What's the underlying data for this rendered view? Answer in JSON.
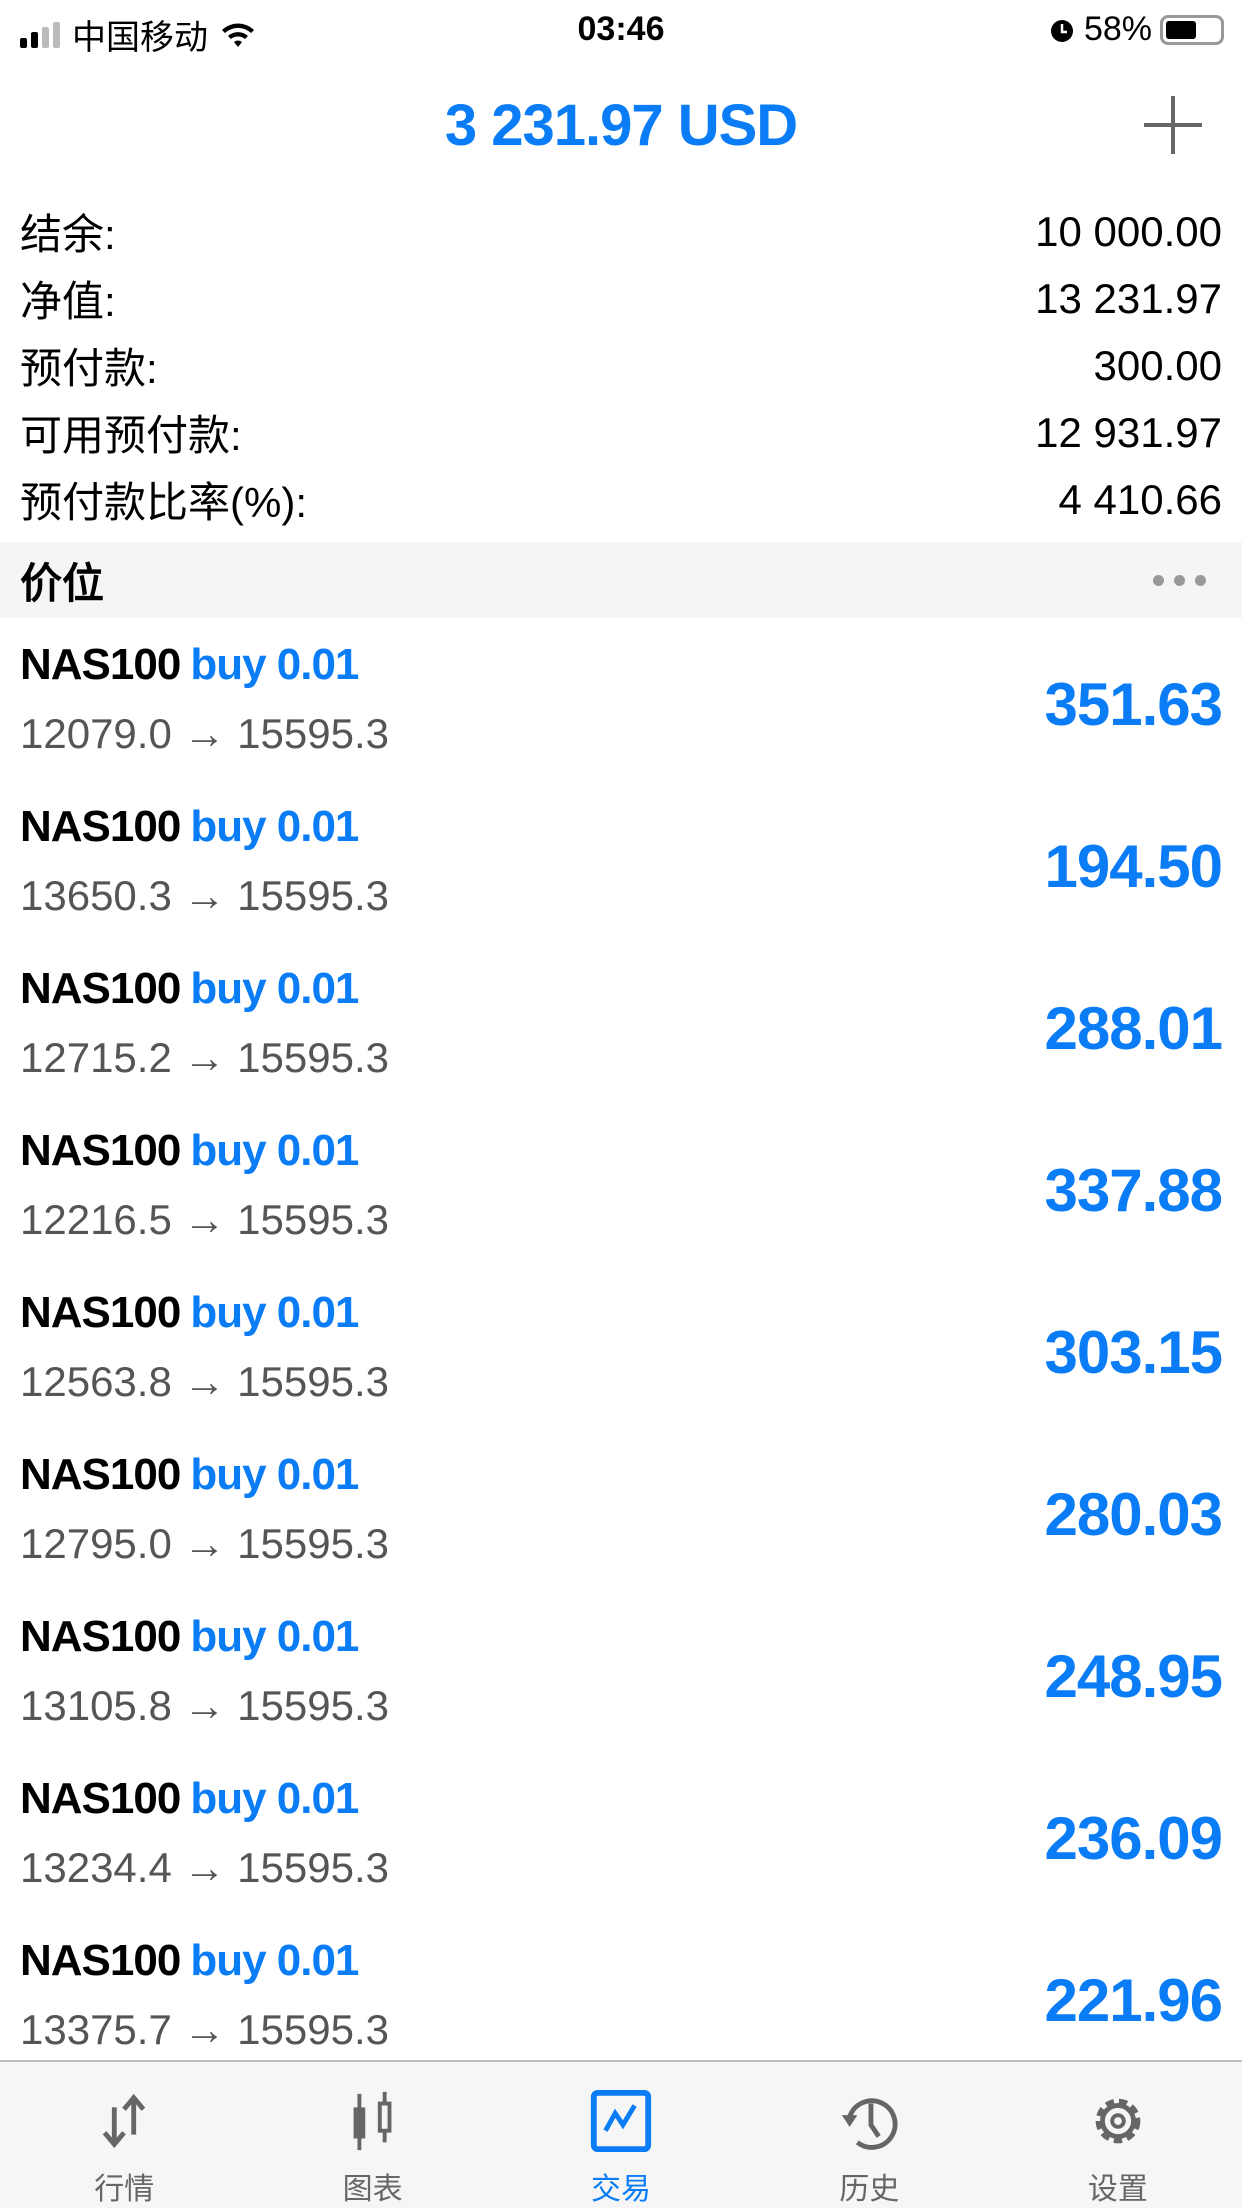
{
  "status_bar": {
    "carrier": "中国移动",
    "time": "03:46",
    "battery": "58%",
    "battery_level": 0.58
  },
  "header": {
    "title": "3 231.97 USD",
    "add_icon": "plus-icon"
  },
  "account": [
    {
      "label": "结余:",
      "value": "10 000.00"
    },
    {
      "label": "净值:",
      "value": "13 231.97"
    },
    {
      "label": "预付款:",
      "value": "300.00"
    },
    {
      "label": "可用预付款:",
      "value": "12 931.97"
    },
    {
      "label": "预付款比率(%):",
      "value": "4 410.66"
    }
  ],
  "section": {
    "title": "价位",
    "more_icon": "more-dots-icon"
  },
  "positions": [
    {
      "symbol": "NAS100",
      "type": "buy 0.01",
      "prices": "12079.0 → 15595.3",
      "profit": "351.63"
    },
    {
      "symbol": "NAS100",
      "type": "buy 0.01",
      "prices": "13650.3 → 15595.3",
      "profit": "194.50"
    },
    {
      "symbol": "NAS100",
      "type": "buy 0.01",
      "prices": "12715.2 → 15595.3",
      "profit": "288.01"
    },
    {
      "symbol": "NAS100",
      "type": "buy 0.01",
      "prices": "12216.5 → 15595.3",
      "profit": "337.88"
    },
    {
      "symbol": "NAS100",
      "type": "buy 0.01",
      "prices": "12563.8 → 15595.3",
      "profit": "303.15"
    },
    {
      "symbol": "NAS100",
      "type": "buy 0.01",
      "prices": "12795.0 → 15595.3",
      "profit": "280.03"
    },
    {
      "symbol": "NAS100",
      "type": "buy 0.01",
      "prices": "13105.8 → 15595.3",
      "profit": "248.95"
    },
    {
      "symbol": "NAS100",
      "type": "buy 0.01",
      "prices": "13234.4 → 15595.3",
      "profit": "236.09"
    },
    {
      "symbol": "NAS100",
      "type": "buy 0.01",
      "prices": "13375.7 → 15595.3",
      "profit": "221.96"
    }
  ],
  "tabs": [
    {
      "label": "行情",
      "icon": "quotes-arrows-icon"
    },
    {
      "label": "图表",
      "icon": "candlestick-chart-icon"
    },
    {
      "label": "交易",
      "icon": "trade-chart-icon",
      "active": true
    },
    {
      "label": "历史",
      "icon": "history-clock-icon"
    },
    {
      "label": "设置",
      "icon": "gear-icon"
    }
  ],
  "colors": {
    "accent": "#0a7cf5",
    "text": "#000000",
    "secondary": "#555555"
  }
}
